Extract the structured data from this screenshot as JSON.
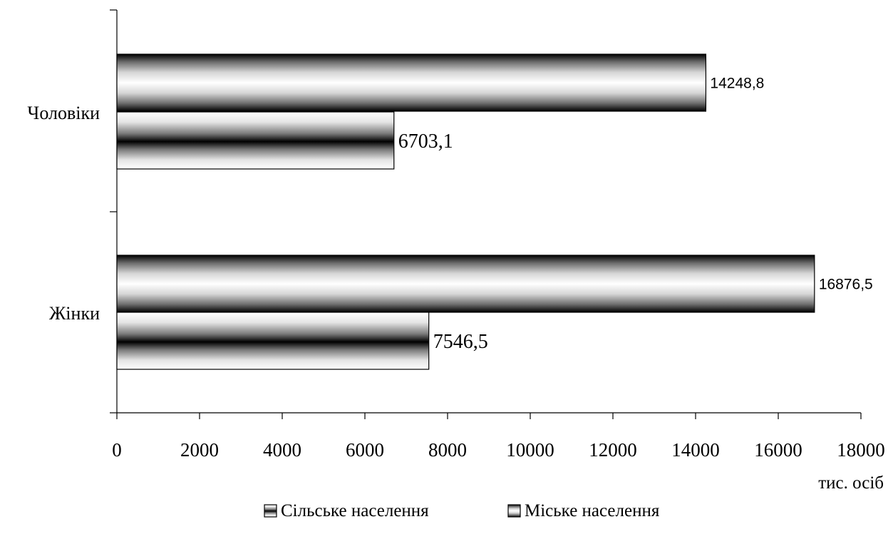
{
  "chart_data": {
    "type": "bar",
    "orientation": "horizontal",
    "categories": [
      "Чоловіки",
      "Жінки"
    ],
    "series": [
      {
        "name": "Сільське населення",
        "values": [
          6703.1,
          7546.5
        ],
        "value_labels": [
          "6703,1",
          "7546,5"
        ]
      },
      {
        "name": "Міське населення",
        "values": [
          14248.8,
          16876.5
        ],
        "value_labels": [
          "14248,8",
          "16876,5"
        ]
      }
    ],
    "xlim": [
      0,
      18000
    ],
    "x_ticks": [
      0,
      2000,
      4000,
      6000,
      8000,
      10000,
      12000,
      14000,
      16000,
      18000
    ],
    "xlabel": "тис. осіб",
    "ylabel": "",
    "title": "",
    "grid": false,
    "legend_position": "bottom"
  }
}
